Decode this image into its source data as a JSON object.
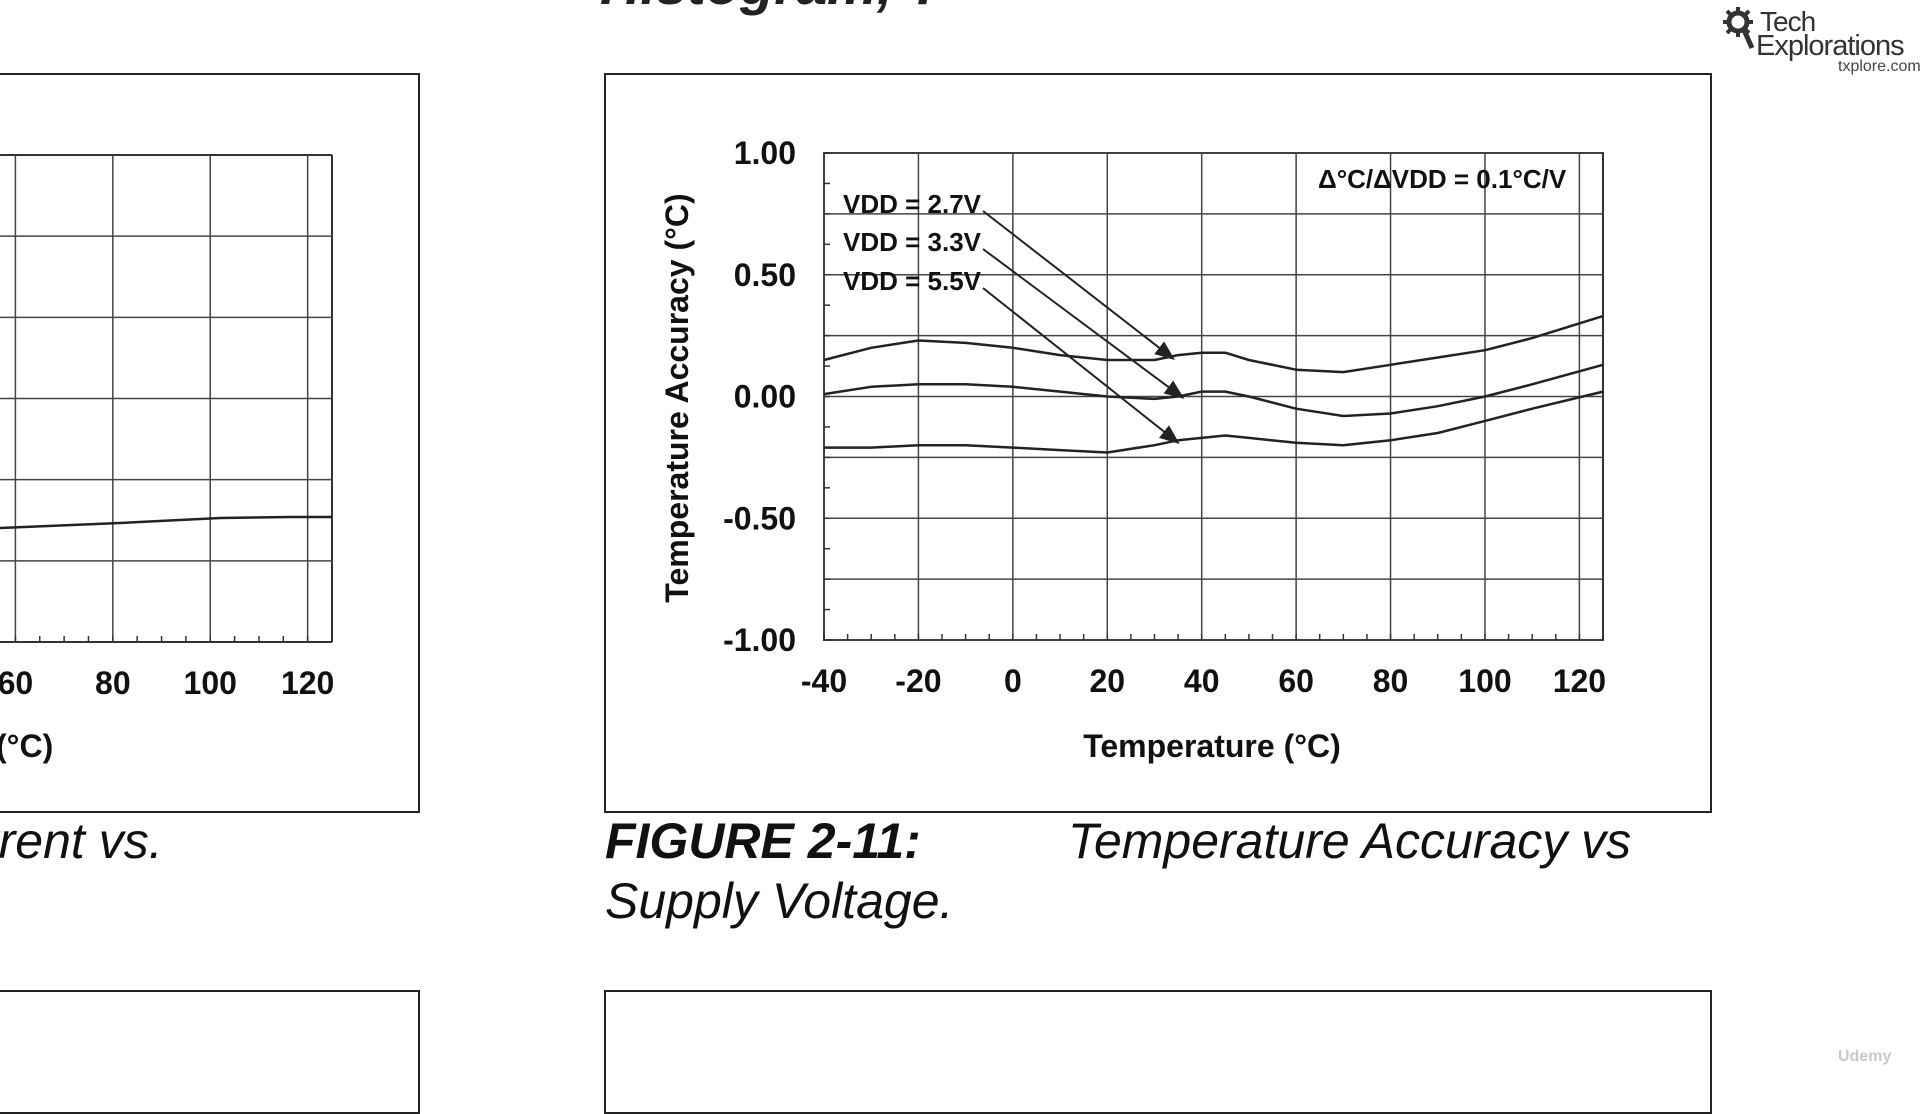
{
  "top_caption_fragment": "Histogram, T",
  "logo": {
    "line1": "Tech",
    "line2": "Explorations",
    "line3": "txplore.com"
  },
  "watermark": "Udemy",
  "left_panel": {
    "x_tick_labels": [
      "60",
      "80",
      "100",
      "120"
    ],
    "x_axis_label_fragment": "(°C)",
    "caption_fragment": "rrent vs."
  },
  "figure": {
    "number": "FIGURE 2-11:",
    "title_line1": "Temperature Accuracy vs",
    "title_line2": "Supply Voltage.",
    "annotation": "Δ°C/ΔVDD = 0.1°C/V",
    "series_labels": [
      "VDD = 2.7V",
      "VDD = 3.3V",
      "VDD = 5.5V"
    ]
  },
  "chart_data": {
    "type": "line",
    "title": "",
    "xlabel": "Temperature (°C)",
    "ylabel": "Temperature Accuracy (°C)",
    "xlim": [
      -40,
      125
    ],
    "ylim": [
      -1.0,
      1.0
    ],
    "x_ticks": [
      -40,
      -20,
      0,
      20,
      40,
      60,
      80,
      100,
      120
    ],
    "y_ticks": [
      1.0,
      0.5,
      0.0,
      -0.5,
      -1.0
    ],
    "y_tick_labels": [
      "1.00",
      "0.50",
      "0.00",
      "-0.50",
      "-1.00"
    ],
    "x_tick_labels": [
      "-40",
      "-20",
      "0",
      "20",
      "40",
      "60",
      "80",
      "100",
      "120"
    ],
    "grid": true,
    "series": [
      {
        "name": "VDD = 2.7V",
        "x": [
          -40,
          -30,
          -20,
          -10,
          0,
          10,
          20,
          30,
          35,
          40,
          45,
          50,
          60,
          70,
          80,
          90,
          100,
          110,
          125
        ],
        "y": [
          0.15,
          0.2,
          0.23,
          0.22,
          0.2,
          0.17,
          0.15,
          0.15,
          0.17,
          0.18,
          0.18,
          0.15,
          0.11,
          0.1,
          0.13,
          0.16,
          0.19,
          0.24,
          0.33
        ]
      },
      {
        "name": "VDD = 3.3V",
        "x": [
          -40,
          -30,
          -20,
          -10,
          0,
          10,
          20,
          30,
          35,
          40,
          45,
          50,
          60,
          70,
          80,
          90,
          100,
          110,
          125
        ],
        "y": [
          0.01,
          0.04,
          0.05,
          0.05,
          0.04,
          0.02,
          0.0,
          -0.01,
          0.0,
          0.02,
          0.02,
          0.0,
          -0.05,
          -0.08,
          -0.07,
          -0.04,
          0.0,
          0.05,
          0.13
        ]
      },
      {
        "name": "VDD = 5.5V",
        "x": [
          -40,
          -30,
          -20,
          -10,
          0,
          10,
          20,
          30,
          35,
          40,
          45,
          50,
          60,
          70,
          80,
          90,
          100,
          110,
          125
        ],
        "y": [
          -0.21,
          -0.21,
          -0.2,
          -0.2,
          -0.21,
          -0.22,
          -0.23,
          -0.2,
          -0.18,
          -0.17,
          -0.16,
          -0.17,
          -0.19,
          -0.2,
          -0.18,
          -0.15,
          -0.1,
          -0.05,
          0.02
        ]
      }
    ]
  }
}
